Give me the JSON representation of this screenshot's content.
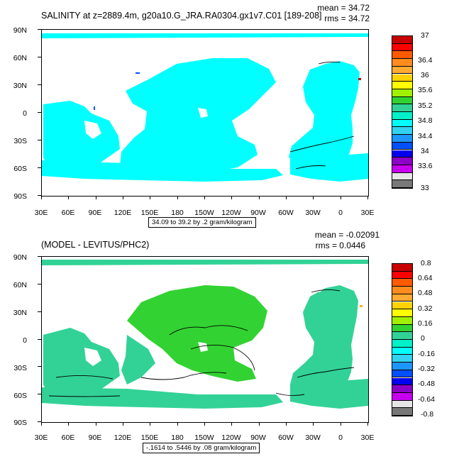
{
  "chart_data": [
    {
      "type": "map",
      "title": "SALINITY at z=2889.4m, g20a10.G_JRA.RA0304.gx1v7.C01 [189-208]",
      "mean_label": "mean = 34.72",
      "rms_label": "rms = 34.72",
      "range_label": "34.09 to 39.2 by .2 gram/kilogram",
      "y_ticks": [
        "90N",
        "60N",
        "30N",
        "0",
        "30S",
        "60S",
        "90S"
      ],
      "x_ticks": [
        "30E",
        "60E",
        "90E",
        "120E",
        "150E",
        "180",
        "150W",
        "120W",
        "90W",
        "60W",
        "30W",
        "0",
        "30E"
      ],
      "colorbar_labels": [
        "37",
        "36.4",
        "36",
        "35.6",
        "35.2",
        "34.8",
        "34.4",
        "34",
        "33.6",
        "33"
      ],
      "colorbar_colors": [
        "#c80000",
        "#ff0000",
        "#ff5a00",
        "#ff8c1e",
        "#ffaa32",
        "#ffd200",
        "#ffff00",
        "#a0f000",
        "#32d232",
        "#32d296",
        "#00f0c8",
        "#00ffff",
        "#32d2f0",
        "#1e96ff",
        "#0050ff",
        "#0000f0",
        "#8c00c8",
        "#c800f0",
        "#e6e6e6",
        "#787878"
      ],
      "fill_color": "#00ffff"
    },
    {
      "type": "map",
      "title": "(MODEL - LEVITUS/PHC2)",
      "mean_label": "mean = -0.02091",
      "rms_label": "rms = 0.0446",
      "range_label": "-.1614 to .5446 by .08 gram/kilogram",
      "y_ticks": [
        "90N",
        "60N",
        "30N",
        "0",
        "30S",
        "60S",
        "90S"
      ],
      "x_ticks": [
        "30E",
        "60E",
        "90E",
        "120E",
        "150E",
        "180",
        "150W",
        "120W",
        "90W",
        "60W",
        "30W",
        "0",
        "30E"
      ],
      "colorbar_labels": [
        "0.8",
        "0.64",
        "0.48",
        "0.32",
        "0.16",
        "0",
        "-0.16",
        "-0.32",
        "-0.48",
        "-0.64",
        "-0.8"
      ],
      "colorbar_colors": [
        "#c80000",
        "#ff0000",
        "#ff5a00",
        "#ff8c1e",
        "#ffaa32",
        "#ffd200",
        "#ffff00",
        "#a0f000",
        "#32d232",
        "#32d296",
        "#00f0c8",
        "#00ffff",
        "#32d2f0",
        "#1e96ff",
        "#0050ff",
        "#0000f0",
        "#8c00c8",
        "#c800f0",
        "#e6e6e6",
        "#787878"
      ],
      "fill_color": "#32d296",
      "positive_fill_color": "#32d232"
    }
  ]
}
